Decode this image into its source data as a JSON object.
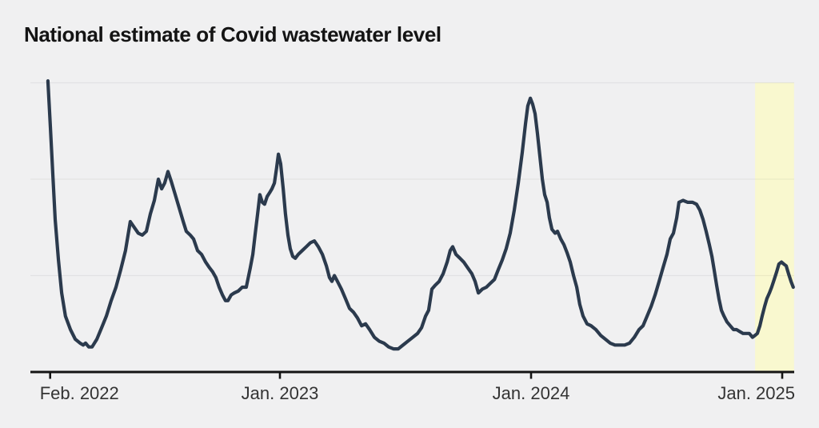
{
  "page": {
    "background": "#f0f0f1"
  },
  "colors": {
    "line": "#2b3a4d",
    "highlight_band": "#f9f8cf",
    "axis": "#141414",
    "tick_label": "#333333",
    "gridline": "rgba(0,0,0,0.055)",
    "title": "#141414"
  },
  "chart_data": {
    "type": "line",
    "title": "National estimate of Covid wastewater level",
    "xlabel": "",
    "ylabel": "",
    "x_axis": {
      "range": [
        2022.05,
        2025.06
      ],
      "ticks": [
        {
          "label": "Feb. 2022",
          "t": 2022.085,
          "align": "left"
        },
        {
          "label": "Jan. 2023",
          "t": 2023.0,
          "align": "center"
        },
        {
          "label": "Jan. 2024",
          "t": 2024.0,
          "align": "center"
        },
        {
          "label": "Jan. 2025",
          "t": 2025.0,
          "align": "right"
        }
      ]
    },
    "y_axis": {
      "labels_visible": false,
      "gridline_levels": [
        5,
        10,
        15
      ],
      "range": [
        0,
        15.2
      ]
    },
    "highlight_band": {
      "t_start": 2024.892,
      "t_end": 2025.047
    },
    "grid": "horizontal-only",
    "legend": "none",
    "series": [
      {
        "name": "Covid wastewater level (national estimate)",
        "points": [
          [
            2022.076,
            15.1
          ],
          [
            2022.086,
            12.7
          ],
          [
            2022.096,
            10.2
          ],
          [
            2022.105,
            7.9
          ],
          [
            2022.118,
            5.8
          ],
          [
            2022.131,
            4.1
          ],
          [
            2022.146,
            2.9
          ],
          [
            2022.166,
            2.2
          ],
          [
            2022.185,
            1.7
          ],
          [
            2022.204,
            1.5
          ],
          [
            2022.217,
            1.4
          ],
          [
            2022.226,
            1.5
          ],
          [
            2022.239,
            1.3
          ],
          [
            2022.252,
            1.3
          ],
          [
            2022.271,
            1.7
          ],
          [
            2022.29,
            2.3
          ],
          [
            2022.309,
            2.9
          ],
          [
            2022.328,
            3.7
          ],
          [
            2022.347,
            4.4
          ],
          [
            2022.366,
            5.3
          ],
          [
            2022.385,
            6.3
          ],
          [
            2022.404,
            7.8
          ],
          [
            2022.42,
            7.5
          ],
          [
            2022.436,
            7.2
          ],
          [
            2022.452,
            7.1
          ],
          [
            2022.468,
            7.3
          ],
          [
            2022.484,
            8.2
          ],
          [
            2022.5,
            8.9
          ],
          [
            2022.516,
            10.0
          ],
          [
            2022.529,
            9.5
          ],
          [
            2022.541,
            9.8
          ],
          [
            2022.554,
            10.4
          ],
          [
            2022.567,
            9.9
          ],
          [
            2022.583,
            9.2
          ],
          [
            2022.599,
            8.5
          ],
          [
            2022.615,
            7.8
          ],
          [
            2022.627,
            7.3
          ],
          [
            2022.643,
            7.1
          ],
          [
            2022.656,
            6.9
          ],
          [
            2022.672,
            6.3
          ],
          [
            2022.688,
            6.1
          ],
          [
            2022.704,
            5.7
          ],
          [
            2022.72,
            5.4
          ],
          [
            2022.732,
            5.2
          ],
          [
            2022.745,
            4.9
          ],
          [
            2022.758,
            4.4
          ],
          [
            2022.771,
            4.0
          ],
          [
            2022.783,
            3.7
          ],
          [
            2022.793,
            3.7
          ],
          [
            2022.806,
            4.0
          ],
          [
            2022.818,
            4.1
          ],
          [
            2022.834,
            4.2
          ],
          [
            2022.85,
            4.4
          ],
          [
            2022.866,
            4.4
          ],
          [
            2022.882,
            5.4
          ],
          [
            2022.892,
            6.1
          ],
          [
            2022.901,
            7.1
          ],
          [
            2022.911,
            8.2
          ],
          [
            2022.92,
            9.2
          ],
          [
            2022.93,
            8.8
          ],
          [
            2022.939,
            8.7
          ],
          [
            2022.949,
            9.1
          ],
          [
            2022.959,
            9.3
          ],
          [
            2022.968,
            9.5
          ],
          [
            2022.978,
            9.8
          ],
          [
            2022.987,
            10.6
          ],
          [
            2022.994,
            11.3
          ],
          [
            2023.003,
            10.8
          ],
          [
            2023.013,
            9.5
          ],
          [
            2023.022,
            8.2
          ],
          [
            2023.032,
            7.1
          ],
          [
            2023.041,
            6.4
          ],
          [
            2023.051,
            6.0
          ],
          [
            2023.061,
            5.9
          ],
          [
            2023.073,
            6.1
          ],
          [
            2023.089,
            6.3
          ],
          [
            2023.105,
            6.5
          ],
          [
            2023.121,
            6.7
          ],
          [
            2023.137,
            6.8
          ],
          [
            2023.153,
            6.5
          ],
          [
            2023.169,
            6.1
          ],
          [
            2023.185,
            5.5
          ],
          [
            2023.197,
            4.9
          ],
          [
            2023.207,
            4.7
          ],
          [
            2023.217,
            5.0
          ],
          [
            2023.229,
            4.7
          ],
          [
            2023.245,
            4.3
          ],
          [
            2023.261,
            3.8
          ],
          [
            2023.277,
            3.3
          ],
          [
            2023.293,
            3.1
          ],
          [
            2023.309,
            2.8
          ],
          [
            2023.325,
            2.4
          ],
          [
            2023.341,
            2.5
          ],
          [
            2023.357,
            2.2
          ],
          [
            2023.376,
            1.8
          ],
          [
            2023.395,
            1.6
          ],
          [
            2023.414,
            1.5
          ],
          [
            2023.433,
            1.3
          ],
          [
            2023.452,
            1.2
          ],
          [
            2023.471,
            1.2
          ],
          [
            2023.49,
            1.4
          ],
          [
            2023.51,
            1.6
          ],
          [
            2023.529,
            1.8
          ],
          [
            2023.548,
            2.0
          ],
          [
            2023.564,
            2.3
          ],
          [
            2023.58,
            2.9
          ],
          [
            2023.592,
            3.2
          ],
          [
            2023.605,
            4.3
          ],
          [
            2023.618,
            4.5
          ],
          [
            2023.634,
            4.7
          ],
          [
            2023.65,
            5.1
          ],
          [
            2023.666,
            5.7
          ],
          [
            2023.678,
            6.3
          ],
          [
            2023.688,
            6.5
          ],
          [
            2023.701,
            6.1
          ],
          [
            2023.717,
            5.9
          ],
          [
            2023.732,
            5.7
          ],
          [
            2023.748,
            5.4
          ],
          [
            2023.764,
            5.1
          ],
          [
            2023.777,
            4.7
          ],
          [
            2023.79,
            4.1
          ],
          [
            2023.806,
            4.3
          ],
          [
            2023.822,
            4.4
          ],
          [
            2023.838,
            4.6
          ],
          [
            2023.854,
            4.8
          ],
          [
            2023.869,
            5.3
          ],
          [
            2023.885,
            5.8
          ],
          [
            2023.901,
            6.4
          ],
          [
            2023.917,
            7.2
          ],
          [
            2023.933,
            8.4
          ],
          [
            2023.949,
            9.8
          ],
          [
            2023.965,
            11.4
          ],
          [
            2023.978,
            12.9
          ],
          [
            2023.987,
            13.8
          ],
          [
            2023.997,
            14.2
          ],
          [
            2024.006,
            13.9
          ],
          [
            2024.016,
            13.4
          ],
          [
            2024.025,
            12.4
          ],
          [
            2024.035,
            11.2
          ],
          [
            2024.045,
            10.0
          ],
          [
            2024.054,
            9.2
          ],
          [
            2024.064,
            8.8
          ],
          [
            2024.073,
            8.0
          ],
          [
            2024.083,
            7.4
          ],
          [
            2024.096,
            7.2
          ],
          [
            2024.105,
            7.3
          ],
          [
            2024.118,
            6.9
          ],
          [
            2024.131,
            6.6
          ],
          [
            2024.143,
            6.2
          ],
          [
            2024.156,
            5.7
          ],
          [
            2024.169,
            5.0
          ],
          [
            2024.182,
            4.4
          ],
          [
            2024.194,
            3.5
          ],
          [
            2024.207,
            2.9
          ],
          [
            2024.223,
            2.5
          ],
          [
            2024.239,
            2.4
          ],
          [
            2024.258,
            2.2
          ],
          [
            2024.277,
            1.9
          ],
          [
            2024.296,
            1.7
          ],
          [
            2024.315,
            1.5
          ],
          [
            2024.334,
            1.4
          ],
          [
            2024.354,
            1.4
          ],
          [
            2024.373,
            1.4
          ],
          [
            2024.392,
            1.5
          ],
          [
            2024.411,
            1.8
          ],
          [
            2024.43,
            2.2
          ],
          [
            2024.446,
            2.4
          ],
          [
            2024.462,
            2.9
          ],
          [
            2024.478,
            3.4
          ],
          [
            2024.494,
            4.0
          ],
          [
            2024.51,
            4.7
          ],
          [
            2024.525,
            5.4
          ],
          [
            2024.541,
            6.1
          ],
          [
            2024.554,
            6.9
          ],
          [
            2024.567,
            7.2
          ],
          [
            2024.58,
            8.0
          ],
          [
            2024.589,
            8.8
          ],
          [
            2024.605,
            8.9
          ],
          [
            2024.624,
            8.8
          ],
          [
            2024.643,
            8.8
          ],
          [
            2024.659,
            8.7
          ],
          [
            2024.672,
            8.4
          ],
          [
            2024.685,
            7.9
          ],
          [
            2024.697,
            7.3
          ],
          [
            2024.71,
            6.6
          ],
          [
            2024.72,
            6.0
          ],
          [
            2024.729,
            5.3
          ],
          [
            2024.739,
            4.5
          ],
          [
            2024.748,
            3.8
          ],
          [
            2024.758,
            3.2
          ],
          [
            2024.768,
            2.9
          ],
          [
            2024.78,
            2.6
          ],
          [
            2024.793,
            2.4
          ],
          [
            2024.806,
            2.2
          ],
          [
            2024.818,
            2.2
          ],
          [
            2024.831,
            2.1
          ],
          [
            2024.844,
            2.0
          ],
          [
            2024.857,
            2.0
          ],
          [
            2024.869,
            2.0
          ],
          [
            2024.882,
            1.8
          ],
          [
            2024.892,
            1.9
          ],
          [
            2024.901,
            2.0
          ],
          [
            2024.911,
            2.4
          ],
          [
            2024.92,
            2.9
          ],
          [
            2024.93,
            3.4
          ],
          [
            2024.939,
            3.8
          ],
          [
            2024.949,
            4.1
          ],
          [
            2024.958,
            4.4
          ],
          [
            2024.968,
            4.8
          ],
          [
            2024.978,
            5.2
          ],
          [
            2024.987,
            5.6
          ],
          [
            2024.997,
            5.7
          ],
          [
            2025.006,
            5.6
          ],
          [
            2025.016,
            5.5
          ],
          [
            2025.025,
            5.1
          ],
          [
            2025.035,
            4.7
          ],
          [
            2025.044,
            4.4
          ]
        ]
      }
    ]
  }
}
